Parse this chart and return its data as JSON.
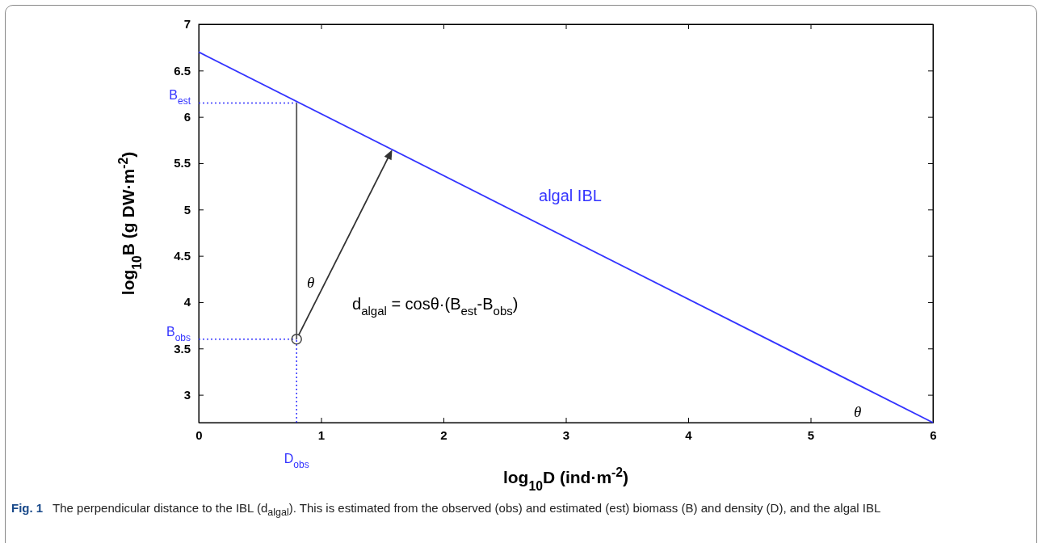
{
  "chart_data": {
    "type": "line",
    "xlabel": "log$_{10}$D (ind·m$^{-2}$)",
    "ylabel": "log$_{10}$B (g DW·m$^{-2}$)",
    "xlim": [
      0,
      6
    ],
    "xticks": [
      0,
      1,
      2,
      3,
      4,
      5,
      6
    ],
    "ylim": [
      2.7,
      7
    ],
    "yticks": [
      3,
      3.5,
      4,
      4.5,
      5,
      5.5,
      6,
      6.5,
      7
    ],
    "series": [
      {
        "name": "algal IBL",
        "color": "#3333ff",
        "line_style": "solid",
        "x": [
          0,
          6
        ],
        "values": [
          6.7,
          2.7
        ]
      },
      {
        "color": "#3333ff",
        "line_style": "dotted",
        "x": [
          0,
          0.8
        ],
        "values": [
          6.15,
          6.15
        ]
      },
      {
        "color": "#3333ff",
        "line_style": "dotted",
        "x": [
          0,
          0.8
        ],
        "values": [
          3.6,
          3.6
        ]
      },
      {
        "color": "#3333ff",
        "line_style": "dotted",
        "x": [
          0.8,
          0.8
        ],
        "values": [
          2.7,
          3.6
        ]
      },
      {
        "color": "#555555",
        "line_style": "solid",
        "x": [
          0.8,
          0.8
        ],
        "values": [
          3.6,
          6.15
        ]
      },
      {
        "type": "scatter",
        "color": "#444444",
        "marker": "circle",
        "x": [
          0.8
        ],
        "values": [
          3.6
        ]
      }
    ],
    "annotations": [
      "B$_{est}$",
      "B$_{obs}$",
      "D$_{obs}$",
      "θ",
      "d$_{algal}$ = cosθ·(B$_{est}$-B$_{obs}$)",
      "θ",
      "Fig. 1",
      "The perpendicular distance to the IBL (d$_{algal}$). This is estimated from the observed (obs) and estimated (est) biomass (B) and density (D), and the algal IBL"
    ]
  }
}
